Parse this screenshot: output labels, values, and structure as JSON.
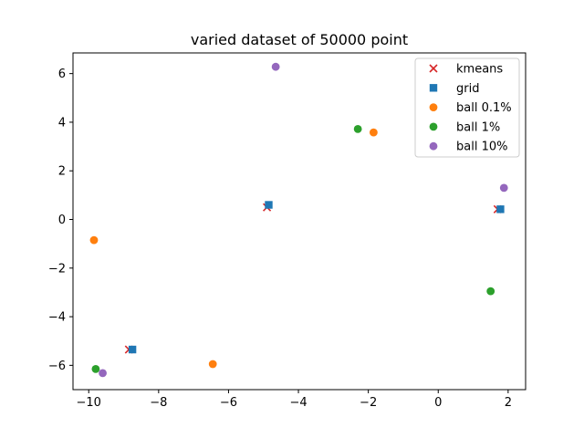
{
  "chart_data": {
    "type": "scatter",
    "title": "varied dataset of 50000 point",
    "xlabel": "",
    "ylabel": "",
    "xlim": [
      -10.45,
      2.5
    ],
    "ylim": [
      -7.0,
      6.85
    ],
    "xticks": [
      -10,
      -8,
      -6,
      -4,
      -2,
      0,
      2
    ],
    "yticks": [
      -6,
      -4,
      -2,
      0,
      2,
      4,
      6
    ],
    "grid": false,
    "legend_position": "top-right",
    "series": [
      {
        "name": "kmeans",
        "marker": "x",
        "color": "#d62728",
        "points": [
          [
            -4.9,
            0.5
          ],
          [
            1.7,
            0.42
          ],
          [
            -8.85,
            -5.35
          ]
        ]
      },
      {
        "name": "grid",
        "marker": "square",
        "color": "#1f77b4",
        "points": [
          [
            -4.85,
            0.6
          ],
          [
            1.78,
            0.42
          ],
          [
            -8.75,
            -5.35
          ]
        ]
      },
      {
        "name": "ball 0.1%",
        "marker": "circle",
        "color": "#ff7f0e",
        "points": [
          [
            -1.85,
            3.58
          ],
          [
            -9.85,
            -0.85
          ],
          [
            -6.45,
            -5.95
          ]
        ]
      },
      {
        "name": "ball 1%",
        "marker": "circle",
        "color": "#2ca02c",
        "points": [
          [
            -2.3,
            3.72
          ],
          [
            1.5,
            -2.95
          ],
          [
            -9.8,
            -6.15
          ]
        ]
      },
      {
        "name": "ball 10%",
        "marker": "circle",
        "color": "#9467bd",
        "points": [
          [
            -4.65,
            6.28
          ],
          [
            1.88,
            1.3
          ],
          [
            -9.6,
            -6.32
          ]
        ]
      }
    ]
  }
}
